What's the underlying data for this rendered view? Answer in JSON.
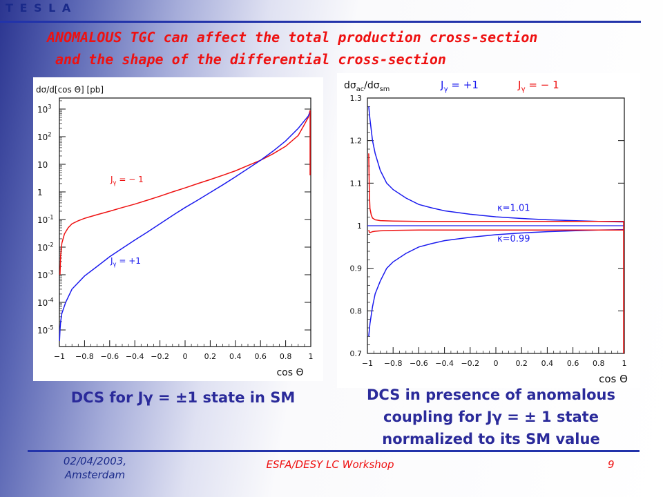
{
  "header": {
    "brand": "T E S L A"
  },
  "title": {
    "line1": "ANOMALOUS TGC can affect the total production cross-section",
    "line2": "and the shape of the differential cross-section"
  },
  "captions": {
    "left": "DCS for Jγ = ±1 state in SM",
    "right_line1": "DCS in presence of anomalous",
    "right_line2": "coupling for   Jγ = ± 1 state",
    "right_line3": "normalized  to its SM value"
  },
  "footer": {
    "date_line1": "02/04/2003,",
    "date_line2": "Amsterdam",
    "workshop": "ESFA/DESY LC Workshop",
    "page": "9"
  },
  "colors": {
    "blue": "#1a1aee",
    "red": "#ee1111",
    "axis": "#111111"
  },
  "chart_data": [
    {
      "type": "line",
      "ylabel": "dσ/d[cos Θ] [pb]",
      "xlabel": "cos Θ",
      "log_y": true,
      "xlim": [
        -1,
        1
      ],
      "ylim_log10": [
        -5.6,
        3.4
      ],
      "x_ticks": [
        "−1",
        "−0.8",
        "−0.6",
        "−0.4",
        "−0.2",
        "0",
        "0.2",
        "0.4",
        "0.6",
        "0.8",
        "1"
      ],
      "y_ticks": [
        {
          "base": "10",
          "exp": "-5",
          "log": -5
        },
        {
          "base": "10",
          "exp": "-4",
          "log": -4
        },
        {
          "base": "10",
          "exp": "-3",
          "log": -3
        },
        {
          "base": "10",
          "exp": "-2",
          "log": -2
        },
        {
          "base": "10",
          "exp": "-1",
          "log": -1
        },
        {
          "base": "1",
          "exp": "",
          "log": 0
        },
        {
          "base": "10",
          "exp": "",
          "log": 1
        },
        {
          "base": "10",
          "exp": "2",
          "log": 2
        },
        {
          "base": "10",
          "exp": "3",
          "log": 3
        }
      ],
      "series": [
        {
          "name": "Jγ = −1",
          "color": "#ee1111",
          "x": [
            -0.995,
            -0.99,
            -0.98,
            -0.96,
            -0.93,
            -0.9,
            -0.85,
            -0.8,
            -0.7,
            -0.6,
            -0.5,
            -0.4,
            -0.3,
            -0.2,
            -0.1,
            0,
            0.1,
            0.2,
            0.3,
            0.4,
            0.5,
            0.6,
            0.7,
            0.8,
            0.9,
            0.95,
            0.98,
            0.995
          ],
          "y": [
            0.001,
            0.005,
            0.014,
            0.03,
            0.05,
            0.07,
            0.09,
            0.11,
            0.15,
            0.2,
            0.27,
            0.36,
            0.5,
            0.7,
            1.0,
            1.4,
            2.0,
            2.8,
            4.0,
            5.8,
            9,
            14,
            24,
            45,
            110,
            280,
            500,
            900
          ]
        },
        {
          "name": "Jγ = +1",
          "color": "#1a1aee",
          "x": [
            -0.999,
            -0.995,
            -0.99,
            -0.98,
            -0.95,
            -0.9,
            -0.8,
            -0.7,
            -0.6,
            -0.5,
            -0.4,
            -0.3,
            -0.2,
            -0.1,
            0,
            0.1,
            0.2,
            0.3,
            0.4,
            0.5,
            0.6,
            0.7,
            0.8,
            0.9,
            0.95,
            0.98,
            0.995
          ],
          "y": [
            4e-06,
            1e-05,
            2e-05,
            4e-05,
            0.0001,
            0.0003,
            0.0009,
            0.002,
            0.0045,
            0.009,
            0.018,
            0.035,
            0.07,
            0.14,
            0.27,
            0.5,
            0.95,
            1.8,
            3.5,
            7,
            14,
            30,
            70,
            200,
            380,
            560,
            800
          ]
        }
      ],
      "annotations": [
        {
          "text_base": "J",
          "text_sub": "γ",
          "text_rest": " = − 1",
          "color": "#ee1111"
        },
        {
          "text_base": "J",
          "text_sub": "γ",
          "text_rest": " = +1",
          "color": "#1a1aee"
        }
      ]
    },
    {
      "type": "line",
      "ylabel_main": "dσ",
      "ylabel_sub1": "ac",
      "ylabel_mid": "/dσ",
      "ylabel_sub2": "sm",
      "legend": [
        {
          "base": "J",
          "sub": "γ",
          "rest": " = +1",
          "color": "#1a1aee"
        },
        {
          "base": "J",
          "sub": "γ",
          "rest": " = − 1",
          "color": "#ee1111"
        }
      ],
      "xlabel": "cos Θ",
      "xlim": [
        -1,
        1
      ],
      "ylim": [
        0.7,
        1.3
      ],
      "x_ticks": [
        "−1",
        "−0.8",
        "−0.6",
        "−0.4",
        "−0.2",
        "0",
        "0.2",
        "0.4",
        "0.6",
        "0.8",
        "1"
      ],
      "y_ticks": [
        {
          "label": "0.7",
          "v": 0.7
        },
        {
          "label": "0.8",
          "v": 0.8
        },
        {
          "label": "0.9",
          "v": 0.9
        },
        {
          "label": "1",
          "v": 1.0
        },
        {
          "label": "1.1",
          "v": 1.1
        },
        {
          "label": "1.2",
          "v": 1.2
        },
        {
          "label": "1.3",
          "v": 1.3
        }
      ],
      "series": [
        {
          "name": "Jγ = +1, κ=1.01",
          "color": "#1a1aee",
          "x": [
            -0.99,
            -0.98,
            -0.96,
            -0.94,
            -0.9,
            -0.85,
            -0.8,
            -0.7,
            -0.6,
            -0.5,
            -0.4,
            -0.2,
            0,
            0.2,
            0.4,
            0.6,
            0.8,
            1.0
          ],
          "y": [
            1.28,
            1.25,
            1.2,
            1.17,
            1.13,
            1.1,
            1.085,
            1.065,
            1.05,
            1.042,
            1.035,
            1.027,
            1.021,
            1.017,
            1.014,
            1.012,
            1.01,
            1.009
          ]
        },
        {
          "name": "Jγ = +1, κ=0.99",
          "color": "#1a1aee",
          "x": [
            -0.99,
            -0.98,
            -0.96,
            -0.94,
            -0.9,
            -0.85,
            -0.8,
            -0.7,
            -0.6,
            -0.5,
            -0.4,
            -0.2,
            0,
            0.2,
            0.4,
            0.6,
            0.8,
            1.0
          ],
          "y": [
            0.74,
            0.77,
            0.81,
            0.84,
            0.87,
            0.9,
            0.915,
            0.935,
            0.95,
            0.958,
            0.965,
            0.973,
            0.979,
            0.983,
            0.986,
            0.988,
            0.99,
            0.991
          ]
        },
        {
          "name": "Jγ = −1, κ=1.01",
          "color": "#ee1111",
          "x": [
            -0.99,
            -0.985,
            -0.98,
            -0.97,
            -0.96,
            -0.94,
            -0.9,
            -0.8,
            -0.6,
            -0.4,
            -0.2,
            0,
            0.4,
            0.8,
            1.0
          ],
          "y": [
            1.17,
            1.08,
            1.04,
            1.025,
            1.018,
            1.014,
            1.012,
            1.011,
            1.01,
            1.01,
            1.01,
            1.01,
            1.01,
            1.01,
            1.01
          ]
        },
        {
          "name": "Jγ = −1, κ=0.99",
          "color": "#ee1111",
          "x": [
            -0.99,
            -0.985,
            -0.98,
            -0.97,
            -0.96,
            -0.94,
            -0.9,
            -0.8,
            -0.6,
            -0.4,
            -0.2,
            0,
            0.4,
            0.8,
            1.0
          ],
          "y": [
            0.99,
            0.985,
            0.984,
            0.985,
            0.986,
            0.987,
            0.988,
            0.989,
            0.99,
            0.99,
            0.99,
            0.99,
            0.99,
            0.99,
            0.99
          ]
        }
      ],
      "reference_line": {
        "y": 1.0,
        "color": "#1a1aee"
      },
      "annotations": [
        {
          "text": "κ=1.01"
        },
        {
          "text": "κ=0.99"
        }
      ]
    }
  ]
}
